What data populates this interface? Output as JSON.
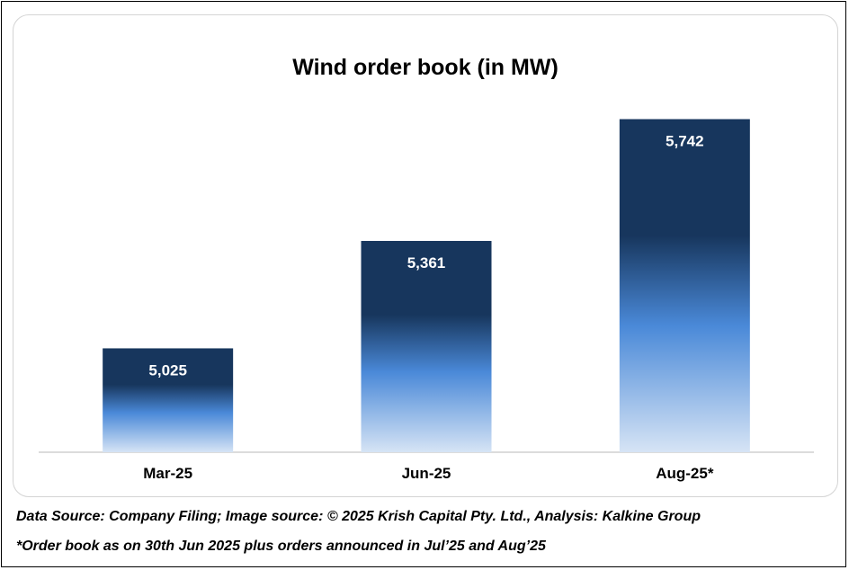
{
  "chart_data": {
    "type": "bar",
    "title": "Wind order book (in MW)",
    "categories": [
      "Mar-25",
      "Jun-25",
      "Aug-25*"
    ],
    "values": [
      5025,
      5361,
      5742
    ],
    "value_labels": [
      "5,025",
      "5,361",
      "5,742"
    ],
    "xlabel": "",
    "ylabel": "",
    "grid": false,
    "legend": "none",
    "bar_colors": {
      "top": "#17365d",
      "middle": "#4a89d8",
      "bottom": "#d6e4f5"
    }
  },
  "footnotes": {
    "source": "Data Source: Company Filing; Image source: © 2025 Krish Capital Pty. Ltd., Analysis: Kalkine Group",
    "note": "*Order book as on 30th Jun 2025 plus orders announced in Jul’25 and Aug’25"
  }
}
